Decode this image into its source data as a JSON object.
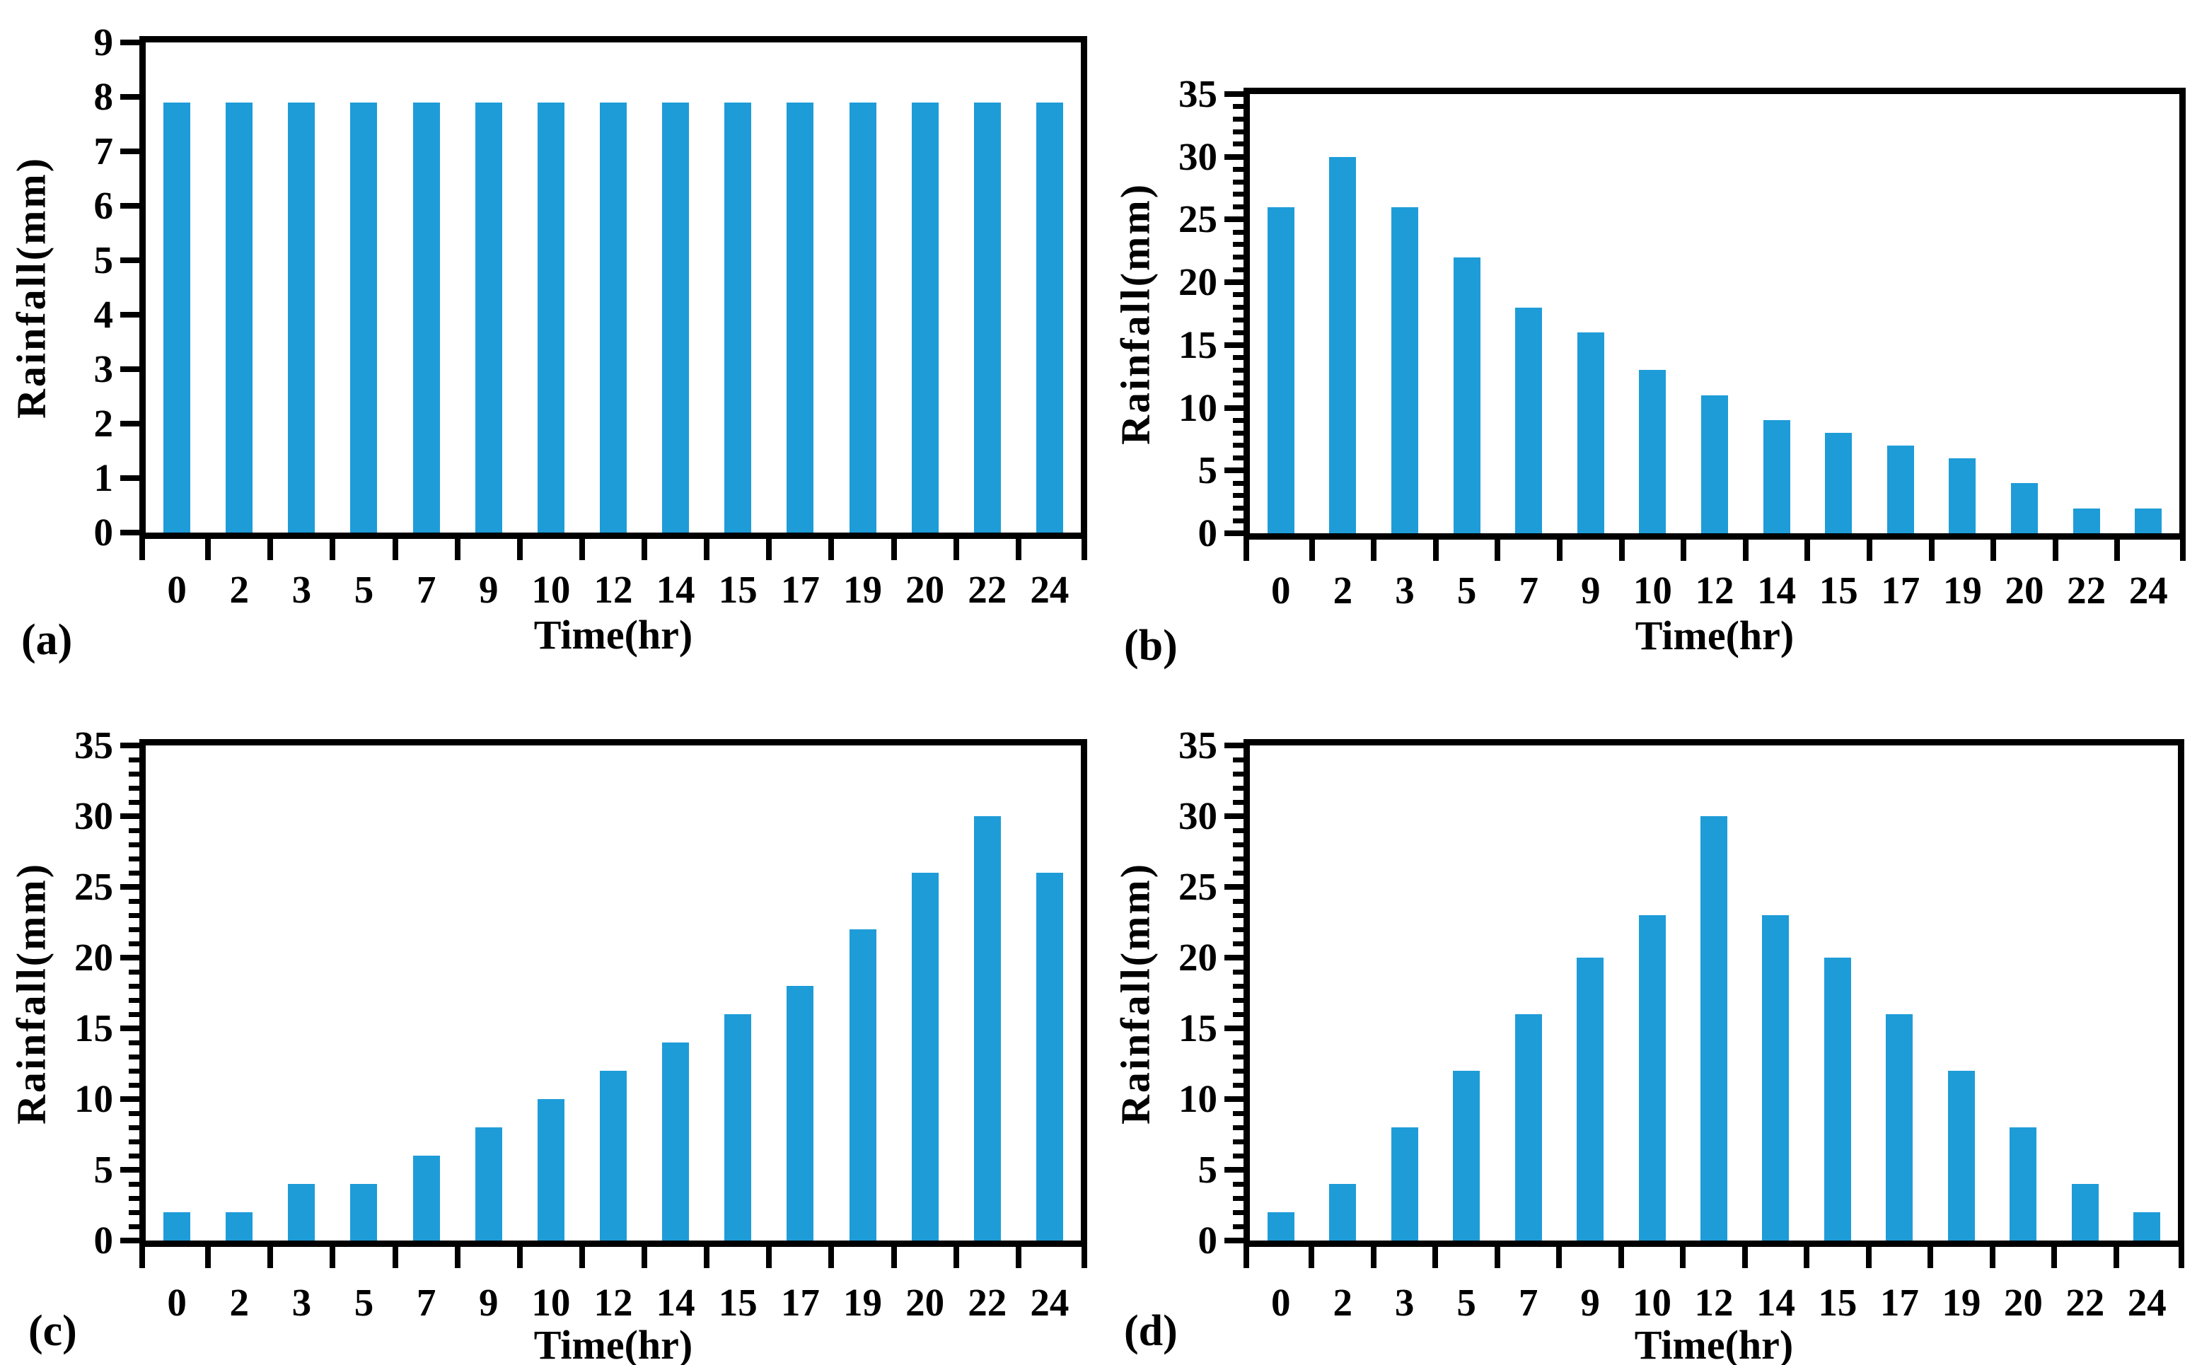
{
  "figure": {
    "bar_color": "#1e9cd8",
    "axis_color": "#000000",
    "background_color": "#ffffff"
  },
  "chart_data": [
    {
      "id": "a",
      "panel_label": "(a)",
      "type": "bar",
      "xlabel": "Time(hr)",
      "ylabel": "Rainfall(mm)",
      "categories": [
        "0",
        "2",
        "3",
        "5",
        "7",
        "9",
        "10",
        "12",
        "14",
        "15",
        "17",
        "19",
        "20",
        "22",
        "24"
      ],
      "values": [
        7.9,
        7.9,
        7.9,
        7.9,
        7.9,
        7.9,
        7.9,
        7.9,
        7.9,
        7.9,
        7.9,
        7.9,
        7.9,
        7.9,
        7.9
      ],
      "ylim": [
        0,
        9
      ],
      "ytick_step": 1,
      "minor_ticks_per_unit": 0,
      "grid": "off",
      "legend": "none"
    },
    {
      "id": "b",
      "panel_label": "(b)",
      "type": "bar",
      "xlabel": "Time(hr)",
      "ylabel": "Rainfall(mm)",
      "categories": [
        "0",
        "2",
        "3",
        "5",
        "7",
        "9",
        "10",
        "12",
        "14",
        "15",
        "17",
        "19",
        "20",
        "22",
        "24"
      ],
      "values": [
        26,
        30,
        26,
        22,
        18,
        16,
        13,
        11,
        9,
        8,
        7,
        6,
        4,
        2,
        2
      ],
      "ylim": [
        0,
        35
      ],
      "ytick_step": 5,
      "minor_ticks_per_unit": 1,
      "grid": "off",
      "legend": "none"
    },
    {
      "id": "c",
      "panel_label": "(c)",
      "type": "bar",
      "xlabel": "Time(hr)",
      "ylabel": "Rainfall(mm)",
      "categories": [
        "0",
        "2",
        "3",
        "5",
        "7",
        "9",
        "10",
        "12",
        "14",
        "15",
        "17",
        "19",
        "20",
        "22",
        "24"
      ],
      "values": [
        2,
        2,
        4,
        4,
        6,
        8,
        10,
        12,
        14,
        16,
        18,
        22,
        26,
        30,
        26
      ],
      "ylim": [
        0,
        35
      ],
      "ytick_step": 5,
      "minor_ticks_per_unit": 1,
      "grid": "off",
      "legend": "none"
    },
    {
      "id": "d",
      "panel_label": "(d)",
      "type": "bar",
      "xlabel": "Time(hr)",
      "ylabel": "Rainfall(mm)",
      "categories": [
        "0",
        "2",
        "3",
        "5",
        "7",
        "9",
        "10",
        "12",
        "14",
        "15",
        "17",
        "19",
        "20",
        "22",
        "24"
      ],
      "values": [
        2,
        4,
        8,
        12,
        16,
        20,
        23,
        30,
        23,
        20,
        16,
        12,
        8,
        4,
        2
      ],
      "ylim": [
        0,
        35
      ],
      "ytick_step": 5,
      "minor_ticks_per_unit": 1,
      "grid": "off",
      "legend": "none"
    }
  ]
}
